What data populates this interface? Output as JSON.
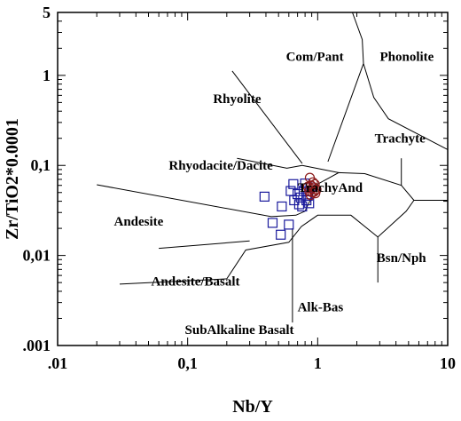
{
  "chart_data": {
    "type": "scatter",
    "title": "",
    "xlabel": "Nb/Y",
    "ylabel": "Zr/TiO2*0.0001",
    "xscale": "log",
    "yscale": "log",
    "xlim": [
      0.01,
      10
    ],
    "ylim": [
      0.001,
      5
    ],
    "x_ticks": [
      {
        "value": 0.01,
        "label": ".01"
      },
      {
        "value": 0.1,
        "label": "0,1"
      },
      {
        "value": 1,
        "label": "1"
      },
      {
        "value": 10,
        "label": "10"
      }
    ],
    "y_ticks": [
      {
        "value": 0.001,
        "label": ".001"
      },
      {
        "value": 0.01,
        "label": "0,01"
      },
      {
        "value": 0.1,
        "label": "0,1"
      },
      {
        "value": 1,
        "label": "1"
      },
      {
        "value": 5,
        "label": "5"
      }
    ],
    "grid": false,
    "legend": "none",
    "field_labels": [
      {
        "text": "Com/Pant",
        "x": 0.95,
        "y": 1.62
      },
      {
        "text": "Phonolite",
        "x": 4.85,
        "y": 1.62
      },
      {
        "text": "Rhyolite",
        "x": 0.24,
        "y": 0.55
      },
      {
        "text": "Trachyte",
        "x": 4.3,
        "y": 0.2
      },
      {
        "text": "Rhyodacite/Dacite",
        "x": 0.18,
        "y": 0.1
      },
      {
        "text": "TrachyAnd",
        "x": 1.25,
        "y": 0.057
      },
      {
        "text": "Andesite",
        "x": 0.042,
        "y": 0.024
      },
      {
        "text": "Bsn/Nph",
        "x": 4.4,
        "y": 0.0095
      },
      {
        "text": "Andesite/Basalt",
        "x": 0.115,
        "y": 0.0052
      },
      {
        "text": "Alk-Bas",
        "x": 1.05,
        "y": 0.0027
      },
      {
        "text": "SubAlkaline Basalt",
        "x": 0.25,
        "y": 0.0015
      }
    ],
    "boundaries": [
      [
        [
          0.02,
          0.061
        ],
        [
          0.44,
          0.027
        ],
        [
          0.68,
          0.028
        ],
        [
          0.8,
          0.031
        ],
        [
          1.0,
          0.062
        ],
        [
          1.45,
          0.083
        ],
        [
          2.3,
          0.081
        ],
        [
          4.4,
          0.06
        ],
        [
          5.5,
          0.041
        ],
        [
          10,
          0.041
        ]
      ],
      [
        [
          0.03,
          0.0048
        ],
        [
          0.2,
          0.0055
        ],
        [
          0.28,
          0.0115
        ],
        [
          0.6,
          0.014
        ],
        [
          0.75,
          0.021
        ],
        [
          1.0,
          0.028
        ],
        [
          1.8,
          0.028
        ],
        [
          2.9,
          0.016
        ],
        [
          4.8,
          0.031
        ],
        [
          5.5,
          0.041
        ]
      ],
      [
        [
          0.06,
          0.012
        ],
        [
          0.3,
          0.0145
        ]
      ],
      [
        [
          0.64,
          0.0018
        ],
        [
          0.64,
          0.02
        ]
      ],
      [
        [
          2.9,
          0.005
        ],
        [
          2.9,
          0.016
        ]
      ],
      [
        [
          0.24,
          0.12
        ],
        [
          0.58,
          0.093
        ],
        [
          0.76,
          0.1
        ]
      ],
      [
        [
          0.22,
          1.12
        ],
        [
          0.76,
          0.105
        ]
      ],
      [
        [
          0.76,
          0.1
        ],
        [
          1.45,
          0.083
        ]
      ],
      [
        [
          1.2,
          0.11
        ],
        [
          2.25,
          1.35
        ]
      ],
      [
        [
          2.25,
          1.35
        ],
        [
          2.2,
          2.5
        ],
        [
          1.85,
          5
        ]
      ],
      [
        [
          2.25,
          1.35
        ],
        [
          2.7,
          0.57
        ],
        [
          3.5,
          0.33
        ],
        [
          10,
          0.15
        ]
      ],
      [
        [
          4.4,
          0.06
        ],
        [
          4.4,
          0.12
        ]
      ]
    ],
    "series": [
      {
        "marker": "square",
        "color": "#1a1a9c",
        "points": [
          {
            "x": 0.39,
            "y": 0.045
          },
          {
            "x": 0.45,
            "y": 0.023
          },
          {
            "x": 0.52,
            "y": 0.017
          },
          {
            "x": 0.53,
            "y": 0.035
          },
          {
            "x": 0.6,
            "y": 0.022
          },
          {
            "x": 0.62,
            "y": 0.052
          },
          {
            "x": 0.65,
            "y": 0.062
          },
          {
            "x": 0.66,
            "y": 0.041
          },
          {
            "x": 0.7,
            "y": 0.048
          },
          {
            "x": 0.72,
            "y": 0.037
          },
          {
            "x": 0.74,
            "y": 0.044
          },
          {
            "x": 0.76,
            "y": 0.035
          },
          {
            "x": 0.78,
            "y": 0.052
          },
          {
            "x": 0.8,
            "y": 0.063
          },
          {
            "x": 0.82,
            "y": 0.041
          },
          {
            "x": 0.84,
            "y": 0.046
          },
          {
            "x": 0.86,
            "y": 0.038
          },
          {
            "x": 0.88,
            "y": 0.057
          }
        ]
      },
      {
        "marker": "circle",
        "color": "#8b1a1a",
        "points": [
          {
            "x": 0.84,
            "y": 0.058
          },
          {
            "x": 0.86,
            "y": 0.052
          },
          {
            "x": 0.87,
            "y": 0.073
          },
          {
            "x": 0.88,
            "y": 0.047
          },
          {
            "x": 0.89,
            "y": 0.06
          },
          {
            "x": 0.9,
            "y": 0.055
          },
          {
            "x": 0.91,
            "y": 0.05
          },
          {
            "x": 0.92,
            "y": 0.065
          },
          {
            "x": 0.93,
            "y": 0.057
          },
          {
            "x": 0.94,
            "y": 0.051
          },
          {
            "x": 0.95,
            "y": 0.062
          },
          {
            "x": 0.96,
            "y": 0.049
          },
          {
            "x": 0.98,
            "y": 0.054
          }
        ]
      }
    ]
  }
}
